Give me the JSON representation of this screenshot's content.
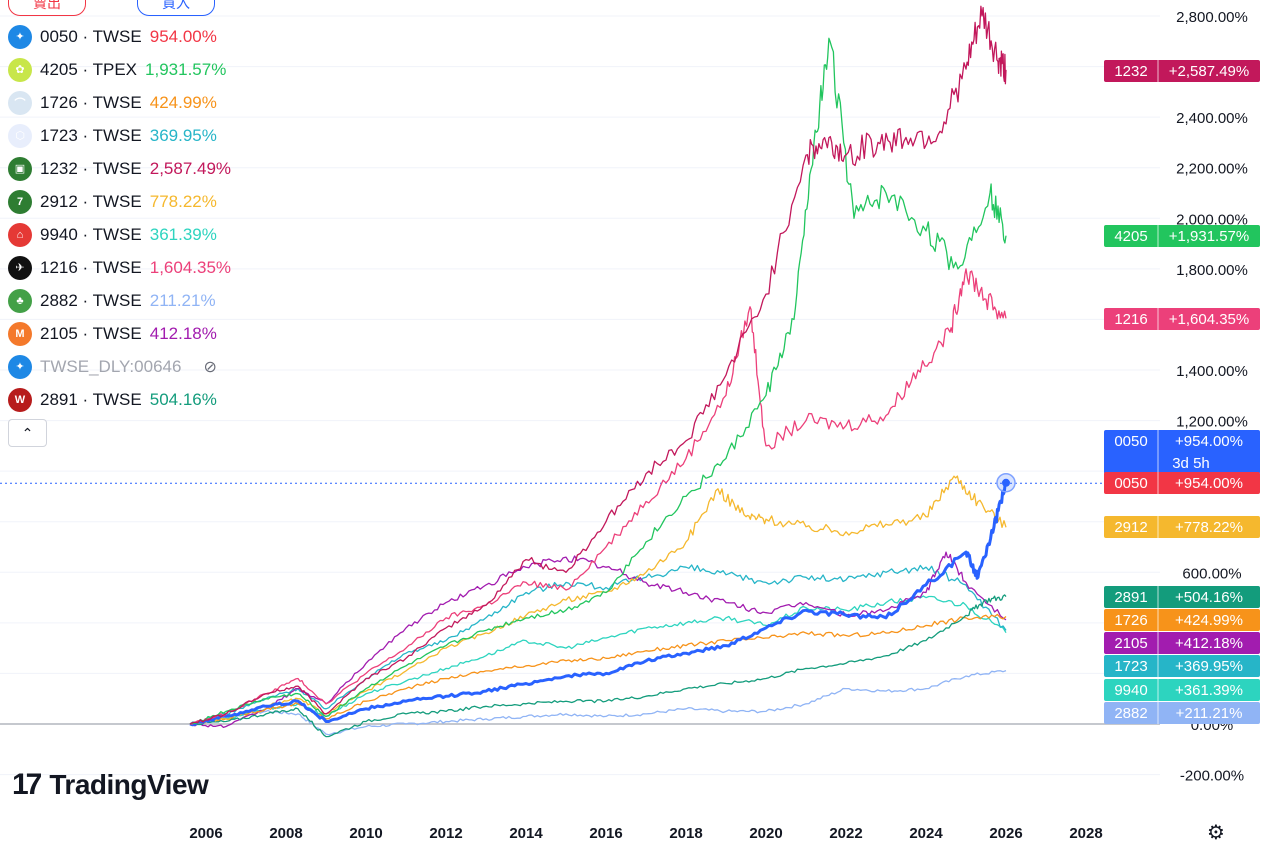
{
  "trade_buttons": {
    "sell": "賣出",
    "buy": "買入"
  },
  "legend": [
    {
      "symbol": "0050 · TWSE",
      "value": "954.00%",
      "color": "#f23645",
      "icon_color": "#1e88e5",
      "icon": "compass-icon"
    },
    {
      "symbol": "4205 · TPEX",
      "value": "1,931.57%",
      "color": "#22c55e",
      "icon_color": "#c8e64a",
      "icon": "flower-icon"
    },
    {
      "symbol": "1726 · TWSE",
      "value": "424.99%",
      "color": "#f7931a",
      "icon_color": "#d9e6f2",
      "icon": "rainbow-icon"
    },
    {
      "symbol": "1723 · TWSE",
      "value": "369.95%",
      "color": "#26b5c8",
      "icon_color": "#e8eefc",
      "icon": "hex-icon"
    },
    {
      "symbol": "1232 · TWSE",
      "value": "2,587.49%",
      "color": "#c2185b",
      "icon_color": "#2e7d32",
      "icon": "bread-icon"
    },
    {
      "symbol": "2912 · TWSE",
      "value": "778.22%",
      "color": "#f5b82e",
      "icon_color": "#2e7d32",
      "icon": "seven-icon"
    },
    {
      "symbol": "9940 · TWSE",
      "value": "361.39%",
      "color": "#2dd4bf",
      "icon_color": "#e53935",
      "icon": "house-icon"
    },
    {
      "symbol": "1216 · TWSE",
      "value": "1,604.35%",
      "color": "#ec407a",
      "icon_color": "#111111",
      "icon": "bird-icon"
    },
    {
      "symbol": "2882 · TWSE",
      "value": "211.21%",
      "color": "#90b4f5",
      "icon_color": "#43a047",
      "icon": "tree-icon"
    },
    {
      "symbol": "2105 · TWSE",
      "value": "412.18%",
      "color": "#a21caf",
      "icon_color": "#f4792b",
      "icon": "m-icon"
    },
    {
      "symbol": "TWSE_DLY:00646",
      "value": "",
      "color": "#a3a6af",
      "icon_color": "#1e88e5",
      "icon": "compass-icon",
      "hidden": true
    },
    {
      "symbol": "2891 · TWSE",
      "value": "504.16%",
      "color": "#139c7c",
      "icon_color": "#b71c1c",
      "icon": "w-icon"
    }
  ],
  "branding": "TradingView",
  "chart_data": {
    "type": "line",
    "ylabel_unit": "%",
    "ylim": [
      -300,
      2900
    ],
    "xlim": [
      2005.5,
      2029.5
    ],
    "x_ticks": [
      "2006",
      "2008",
      "2010",
      "2012",
      "2014",
      "2016",
      "2018",
      "2020",
      "2022",
      "2024",
      "2026",
      "2028"
    ],
    "y_ticks": [
      "2,800.00%",
      "2,400.00%",
      "2,200.00%",
      "2,000.00%",
      "1,800.00%",
      "1,400.00%",
      "1,200.00%",
      "600.00%",
      "0.00%",
      "-200.00%"
    ],
    "y_tick_values": [
      2800,
      2400,
      2200,
      2000,
      1800,
      1400,
      1200,
      600,
      0,
      -200
    ],
    "crosshair_value": 954,
    "countdown": "3d 5h",
    "series": [
      {
        "name": "1232",
        "label": "+2,587.49%",
        "color": "#c2185b",
        "points": [
          [
            2005.6,
            0
          ],
          [
            2006.5,
            40
          ],
          [
            2007.5,
            120
          ],
          [
            2008.3,
            150
          ],
          [
            2009,
            40
          ],
          [
            2010,
            180
          ],
          [
            2011,
            260
          ],
          [
            2012,
            380
          ],
          [
            2013,
            470
          ],
          [
            2014,
            650
          ],
          [
            2015,
            600
          ],
          [
            2016,
            800
          ],
          [
            2017,
            990
          ],
          [
            2018,
            1120
          ],
          [
            2019,
            1380
          ],
          [
            2020,
            1700
          ],
          [
            2021,
            2250
          ],
          [
            2021.5,
            2300
          ],
          [
            2022,
            2250
          ],
          [
            2022.8,
            2300
          ],
          [
            2023.5,
            2320
          ],
          [
            2024.3,
            2330
          ],
          [
            2025,
            2590
          ],
          [
            2025.4,
            2800
          ],
          [
            2025.8,
            2620
          ],
          [
            2026,
            2587
          ]
        ]
      },
      {
        "name": "4205",
        "label": "+1,931.57%",
        "color": "#22c55e",
        "points": [
          [
            2005.6,
            0
          ],
          [
            2006.5,
            50
          ],
          [
            2007.5,
            100
          ],
          [
            2008.3,
            120
          ],
          [
            2009,
            30
          ],
          [
            2010,
            140
          ],
          [
            2011,
            230
          ],
          [
            2012,
            310
          ],
          [
            2013,
            370
          ],
          [
            2014,
            420
          ],
          [
            2015,
            450
          ],
          [
            2016,
            520
          ],
          [
            2017,
            720
          ],
          [
            2018,
            900
          ],
          [
            2019,
            1050
          ],
          [
            2020,
            1300
          ],
          [
            2020.7,
            1600
          ],
          [
            2021.2,
            2300
          ],
          [
            2021.6,
            2700
          ],
          [
            2022.2,
            2000
          ],
          [
            2023,
            2100
          ],
          [
            2024,
            1950
          ],
          [
            2024.8,
            1800
          ],
          [
            2025.6,
            2100
          ],
          [
            2026,
            1931
          ]
        ]
      },
      {
        "name": "1216",
        "label": "+1,604.35%",
        "color": "#ec407a",
        "points": [
          [
            2005.6,
            0
          ],
          [
            2006.5,
            40
          ],
          [
            2007.5,
            120
          ],
          [
            2008.3,
            180
          ],
          [
            2009,
            80
          ],
          [
            2010,
            200
          ],
          [
            2011,
            300
          ],
          [
            2012,
            420
          ],
          [
            2013,
            470
          ],
          [
            2014,
            560
          ],
          [
            2015,
            530
          ],
          [
            2016,
            700
          ],
          [
            2017,
            880
          ],
          [
            2018,
            1050
          ],
          [
            2019,
            1300
          ],
          [
            2019.6,
            1650
          ],
          [
            2020,
            1100
          ],
          [
            2021,
            1200
          ],
          [
            2022,
            1180
          ],
          [
            2023,
            1220
          ],
          [
            2023.8,
            1400
          ],
          [
            2024.6,
            1550
          ],
          [
            2025,
            1800
          ],
          [
            2025.5,
            1680
          ],
          [
            2026,
            1604
          ]
        ]
      },
      {
        "name": "0050",
        "label": "+954.00%",
        "color": "#2962ff",
        "points": [
          [
            2005.6,
            0
          ],
          [
            2006.5,
            30
          ],
          [
            2007.5,
            70
          ],
          [
            2008.3,
            90
          ],
          [
            2009,
            10
          ],
          [
            2010,
            60
          ],
          [
            2011,
            90
          ],
          [
            2012,
            110
          ],
          [
            2013,
            130
          ],
          [
            2014,
            160
          ],
          [
            2015,
            190
          ],
          [
            2016,
            200
          ],
          [
            2017,
            250
          ],
          [
            2018,
            280
          ],
          [
            2019,
            310
          ],
          [
            2020,
            380
          ],
          [
            2021,
            450
          ],
          [
            2022,
            430
          ],
          [
            2023,
            420
          ],
          [
            2024,
            550
          ],
          [
            2025,
            680
          ],
          [
            2025.3,
            580
          ],
          [
            2025.7,
            780
          ],
          [
            2026,
            954
          ]
        ]
      },
      {
        "name": "2912",
        "label": "+778.22%",
        "color": "#f5b82e",
        "points": [
          [
            2005.6,
            0
          ],
          [
            2006.5,
            20
          ],
          [
            2007.5,
            70
          ],
          [
            2008.3,
            100
          ],
          [
            2009,
            40
          ],
          [
            2010,
            130
          ],
          [
            2011,
            210
          ],
          [
            2012,
            300
          ],
          [
            2013,
            360
          ],
          [
            2014,
            430
          ],
          [
            2015,
            490
          ],
          [
            2016,
            520
          ],
          [
            2017,
            600
          ],
          [
            2018,
            720
          ],
          [
            2018.8,
            930
          ],
          [
            2019.5,
            820
          ],
          [
            2020,
            810
          ],
          [
            2021,
            780
          ],
          [
            2022,
            760
          ],
          [
            2023,
            790
          ],
          [
            2024,
            820
          ],
          [
            2024.7,
            980
          ],
          [
            2025.3,
            880
          ],
          [
            2026,
            778
          ]
        ]
      },
      {
        "name": "2891",
        "label": "+504.16%",
        "color": "#139c7c",
        "points": [
          [
            2005.6,
            0
          ],
          [
            2006.5,
            10
          ],
          [
            2007.5,
            40
          ],
          [
            2008.3,
            60
          ],
          [
            2009,
            -50
          ],
          [
            2010,
            10
          ],
          [
            2011,
            40
          ],
          [
            2012,
            50
          ],
          [
            2013,
            70
          ],
          [
            2014,
            80
          ],
          [
            2015,
            90
          ],
          [
            2016,
            90
          ],
          [
            2017,
            110
          ],
          [
            2018,
            140
          ],
          [
            2019,
            160
          ],
          [
            2020,
            180
          ],
          [
            2021,
            220
          ],
          [
            2022,
            240
          ],
          [
            2023,
            270
          ],
          [
            2024,
            330
          ],
          [
            2025,
            430
          ],
          [
            2025.5,
            490
          ],
          [
            2026,
            504
          ]
        ]
      },
      {
        "name": "1726",
        "label": "+424.99%",
        "color": "#f7931a",
        "points": [
          [
            2005.6,
            0
          ],
          [
            2006.5,
            20
          ],
          [
            2007.5,
            60
          ],
          [
            2008.3,
            80
          ],
          [
            2009,
            20
          ],
          [
            2010,
            90
          ],
          [
            2011,
            140
          ],
          [
            2012,
            180
          ],
          [
            2013,
            210
          ],
          [
            2014,
            230
          ],
          [
            2015,
            250
          ],
          [
            2016,
            260
          ],
          [
            2017,
            290
          ],
          [
            2018,
            310
          ],
          [
            2019,
            330
          ],
          [
            2020,
            340
          ],
          [
            2021,
            360
          ],
          [
            2022,
            350
          ],
          [
            2023,
            360
          ],
          [
            2024,
            390
          ],
          [
            2025,
            420
          ],
          [
            2026,
            425
          ]
        ]
      },
      {
        "name": "2105",
        "label": "+412.18%",
        "color": "#a21caf",
        "points": [
          [
            2005.6,
            0
          ],
          [
            2006.5,
            -10
          ],
          [
            2007.5,
            60
          ],
          [
            2008.3,
            140
          ],
          [
            2009,
            80
          ],
          [
            2010,
            240
          ],
          [
            2011,
            380
          ],
          [
            2012,
            480
          ],
          [
            2013,
            550
          ],
          [
            2014,
            620
          ],
          [
            2015,
            660
          ],
          [
            2016,
            620
          ],
          [
            2017,
            560
          ],
          [
            2018,
            520
          ],
          [
            2019,
            480
          ],
          [
            2020,
            440
          ],
          [
            2021,
            480
          ],
          [
            2022,
            430
          ],
          [
            2023,
            450
          ],
          [
            2024,
            520
          ],
          [
            2024.5,
            680
          ],
          [
            2025,
            560
          ],
          [
            2026,
            412
          ]
        ]
      },
      {
        "name": "1723",
        "label": "+369.95%",
        "color": "#26b5c8",
        "points": [
          [
            2005.6,
            0
          ],
          [
            2006.5,
            40
          ],
          [
            2007.5,
            100
          ],
          [
            2008.3,
            140
          ],
          [
            2009,
            60
          ],
          [
            2010,
            180
          ],
          [
            2011,
            280
          ],
          [
            2012,
            330
          ],
          [
            2013,
            420
          ],
          [
            2014,
            520
          ],
          [
            2015,
            560
          ],
          [
            2016,
            540
          ],
          [
            2017,
            580
          ],
          [
            2018,
            620
          ],
          [
            2019,
            590
          ],
          [
            2020,
            560
          ],
          [
            2021,
            580
          ],
          [
            2022,
            570
          ],
          [
            2023,
            600
          ],
          [
            2024,
            620
          ],
          [
            2025,
            550
          ],
          [
            2026,
            370
          ]
        ]
      },
      {
        "name": "9940",
        "label": "+361.39%",
        "color": "#2dd4bf",
        "points": [
          [
            2005.6,
            0
          ],
          [
            2006.5,
            20
          ],
          [
            2007.5,
            60
          ],
          [
            2008.3,
            80
          ],
          [
            2009,
            30
          ],
          [
            2010,
            120
          ],
          [
            2011,
            170
          ],
          [
            2012,
            220
          ],
          [
            2013,
            270
          ],
          [
            2014,
            330
          ],
          [
            2015,
            300
          ],
          [
            2016,
            340
          ],
          [
            2017,
            380
          ],
          [
            2018,
            400
          ],
          [
            2019,
            420
          ],
          [
            2020,
            390
          ],
          [
            2021,
            460
          ],
          [
            2022,
            450
          ],
          [
            2023,
            480
          ],
          [
            2024,
            500
          ],
          [
            2025,
            470
          ],
          [
            2026,
            361
          ]
        ]
      },
      {
        "name": "2882",
        "label": "+211.21%",
        "color": "#90b4f5",
        "points": [
          [
            2005.6,
            0
          ],
          [
            2006.5,
            30
          ],
          [
            2007.5,
            50
          ],
          [
            2008.3,
            40
          ],
          [
            2009,
            -40
          ],
          [
            2010,
            -10
          ],
          [
            2011,
            0
          ],
          [
            2012,
            10
          ],
          [
            2013,
            20
          ],
          [
            2014,
            30
          ],
          [
            2015,
            40
          ],
          [
            2016,
            30
          ],
          [
            2017,
            40
          ],
          [
            2018,
            60
          ],
          [
            2019,
            50
          ],
          [
            2020,
            50
          ],
          [
            2021,
            80
          ],
          [
            2022,
            140
          ],
          [
            2023,
            130
          ],
          [
            2024,
            140
          ],
          [
            2025,
            190
          ],
          [
            2026,
            211
          ]
        ]
      }
    ]
  }
}
